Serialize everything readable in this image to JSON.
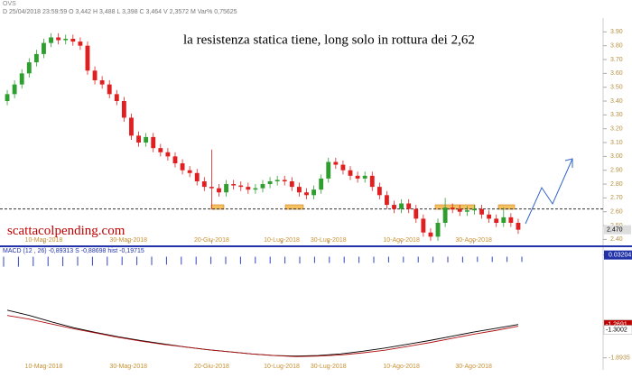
{
  "chart_data": [
    {
      "type": "candlestick",
      "symbol": "OVS",
      "info": "D 25/04/2018  23:59:59  O 3,442  H 3,488  L 3,398  C 3,464  V 2,3572 M  Var% 0,75625",
      "annotation": "la resistenza statica tiene, long solo in rottura dei 2,62",
      "watermark": "scattacolpending.com",
      "up_color": "#2e9e2e",
      "down_color": "#e02020",
      "resistance": 2.62,
      "last_price": {
        "value": 2.47,
        "label": "2.470"
      },
      "open": [
        3.4,
        3.45,
        3.52,
        3.6,
        3.68,
        3.74,
        3.82,
        3.86,
        3.84,
        3.85,
        3.83,
        3.8,
        3.62,
        3.55,
        3.52,
        3.45,
        3.4,
        3.28,
        3.15,
        3.1,
        3.14,
        3.06,
        3.03,
        3.0,
        2.95,
        2.9,
        2.88,
        2.82,
        2.78,
        2.77,
        2.74,
        2.8,
        2.79,
        2.78,
        2.76,
        2.77,
        2.8,
        2.82,
        2.83,
        2.82,
        2.78,
        2.74,
        2.72,
        2.76,
        2.84,
        2.96,
        2.94,
        2.9,
        2.86,
        2.84,
        2.86,
        2.78,
        2.72,
        2.65,
        2.62,
        2.66,
        2.62,
        2.55,
        2.45,
        2.42,
        2.52,
        2.63,
        2.62,
        2.6,
        2.61,
        2.62,
        2.58,
        2.55,
        2.52,
        2.56,
        2.52
      ],
      "high": [
        3.48,
        3.55,
        3.63,
        3.71,
        3.77,
        3.85,
        3.89,
        3.89,
        3.88,
        3.88,
        3.86,
        3.83,
        3.65,
        3.58,
        3.55,
        3.48,
        3.43,
        3.31,
        3.18,
        3.17,
        3.17,
        3.09,
        3.06,
        3.03,
        2.98,
        2.93,
        2.91,
        2.85,
        3.05,
        2.8,
        2.83,
        2.83,
        2.82,
        2.81,
        2.8,
        2.83,
        2.85,
        2.86,
        2.86,
        2.85,
        2.81,
        2.77,
        2.79,
        2.87,
        2.99,
        2.99,
        2.97,
        2.93,
        2.89,
        2.89,
        2.89,
        2.81,
        2.75,
        2.68,
        2.69,
        2.69,
        2.65,
        2.58,
        2.48,
        2.55,
        2.7,
        2.66,
        2.65,
        2.64,
        2.65,
        2.65,
        2.61,
        2.58,
        2.63,
        2.59,
        2.55
      ],
      "low": [
        3.37,
        3.42,
        3.49,
        3.57,
        3.65,
        3.71,
        3.79,
        3.81,
        3.81,
        3.8,
        3.77,
        3.59,
        3.52,
        3.49,
        3.42,
        3.37,
        3.25,
        3.12,
        3.07,
        3.07,
        3.03,
        3.0,
        2.97,
        2.92,
        2.87,
        2.85,
        2.79,
        2.75,
        2.62,
        2.71,
        2.71,
        2.76,
        2.75,
        2.73,
        2.73,
        2.74,
        2.77,
        2.79,
        2.79,
        2.75,
        2.71,
        2.69,
        2.69,
        2.73,
        2.81,
        2.91,
        2.87,
        2.83,
        2.81,
        2.81,
        2.75,
        2.69,
        2.62,
        2.59,
        2.59,
        2.59,
        2.52,
        2.42,
        2.39,
        2.39,
        2.49,
        2.59,
        2.57,
        2.57,
        2.58,
        2.55,
        2.52,
        2.49,
        2.49,
        2.49,
        2.44
      ],
      "close": [
        3.45,
        3.52,
        3.6,
        3.68,
        3.74,
        3.82,
        3.86,
        3.84,
        3.85,
        3.83,
        3.8,
        3.62,
        3.55,
        3.52,
        3.45,
        3.4,
        3.28,
        3.15,
        3.1,
        3.14,
        3.06,
        3.03,
        3.0,
        2.95,
        2.9,
        2.88,
        2.82,
        2.78,
        2.77,
        2.74,
        2.8,
        2.79,
        2.78,
        2.76,
        2.77,
        2.8,
        2.82,
        2.83,
        2.82,
        2.78,
        2.74,
        2.72,
        2.76,
        2.84,
        2.96,
        2.94,
        2.9,
        2.86,
        2.84,
        2.86,
        2.78,
        2.72,
        2.65,
        2.62,
        2.66,
        2.62,
        2.55,
        2.45,
        2.42,
        2.52,
        2.63,
        2.62,
        2.6,
        2.61,
        2.62,
        2.58,
        2.55,
        2.52,
        2.56,
        2.52,
        2.47
      ],
      "ylim": [
        2.37,
        4.0
      ],
      "yticks": [
        {
          "value": 3.9,
          "label": "3.90"
        },
        {
          "value": 3.8,
          "label": "3.80"
        },
        {
          "value": 3.7,
          "label": "3.70"
        },
        {
          "value": 3.6,
          "label": "3.60"
        },
        {
          "value": 3.5,
          "label": "3.50"
        },
        {
          "value": 3.4,
          "label": "3.40"
        },
        {
          "value": 3.3,
          "label": "3.30"
        },
        {
          "value": 3.2,
          "label": "3.20"
        },
        {
          "value": 3.1,
          "label": "3.10"
        },
        {
          "value": 3.0,
          "label": "3.00"
        },
        {
          "value": 2.9,
          "label": "2.90"
        },
        {
          "value": 2.8,
          "label": "2.80"
        },
        {
          "value": 2.7,
          "label": "2.70"
        },
        {
          "value": 2.6,
          "label": "2.60"
        },
        {
          "value": 2.5,
          "label": "2.50"
        },
        {
          "value": 2.4,
          "label": "2.40"
        }
      ],
      "xlim": [
        -0.5,
        70.5
      ],
      "xticks": [
        {
          "value": 5,
          "label": "10-Mag-2018"
        },
        {
          "value": 16.6,
          "label": "30-Mag-2018"
        },
        {
          "value": 28,
          "label": "20-Giu-2018"
        },
        {
          "value": 37.6,
          "label": "10-Lug-2018"
        },
        {
          "value": 44,
          "label": "30-Lug-2018"
        },
        {
          "value": 54,
          "label": "10-Ago-2018"
        },
        {
          "value": 63.9,
          "label": "30-Ago-2018"
        }
      ]
    },
    {
      "type": "macd",
      "info": "MACD  (12 , 26)   -0,89313   S   -0,88698   hist   -0,19715",
      "ylim": [
        -1.95,
        0.06
      ],
      "yticks": [
        0.03204,
        -1.8935
      ],
      "hist_color": "#3344bb",
      "hist": [
        -0.12,
        -0.12,
        -0.11,
        -0.11,
        -0.11,
        -0.1,
        -0.1,
        -0.1,
        -0.09,
        -0.09,
        -0.09,
        -0.08,
        -0.08,
        -0.08,
        -0.07,
        -0.07,
        -0.07,
        -0.06,
        -0.06,
        -0.06,
        -0.06,
        -0.05,
        -0.05,
        -0.05,
        -0.05,
        -0.05,
        -0.04,
        -0.04,
        -0.04,
        -0.04,
        -0.04,
        -0.04,
        -0.03,
        -0.03,
        -0.03,
        -0.03
      ],
      "series": [
        {
          "name": "MACD",
          "color": "#000000",
          "values": [
            -1.0,
            -1.1,
            -1.22,
            -1.33,
            -1.42,
            -1.5,
            -1.57,
            -1.63,
            -1.69,
            -1.74,
            -1.78,
            -1.82,
            -1.85,
            -1.86,
            -1.85,
            -1.82,
            -1.77,
            -1.71,
            -1.64,
            -1.57,
            -1.49,
            -1.41,
            -1.34,
            -1.2691
          ]
        },
        {
          "name": "S",
          "color": "#b01010",
          "values": [
            -1.1,
            -1.17,
            -1.26,
            -1.35,
            -1.43,
            -1.51,
            -1.58,
            -1.64,
            -1.69,
            -1.74,
            -1.78,
            -1.82,
            -1.85,
            -1.87,
            -1.86,
            -1.84,
            -1.8,
            -1.75,
            -1.68,
            -1.61,
            -1.53,
            -1.45,
            -1.38,
            -1.3002
          ]
        }
      ]
    }
  ]
}
